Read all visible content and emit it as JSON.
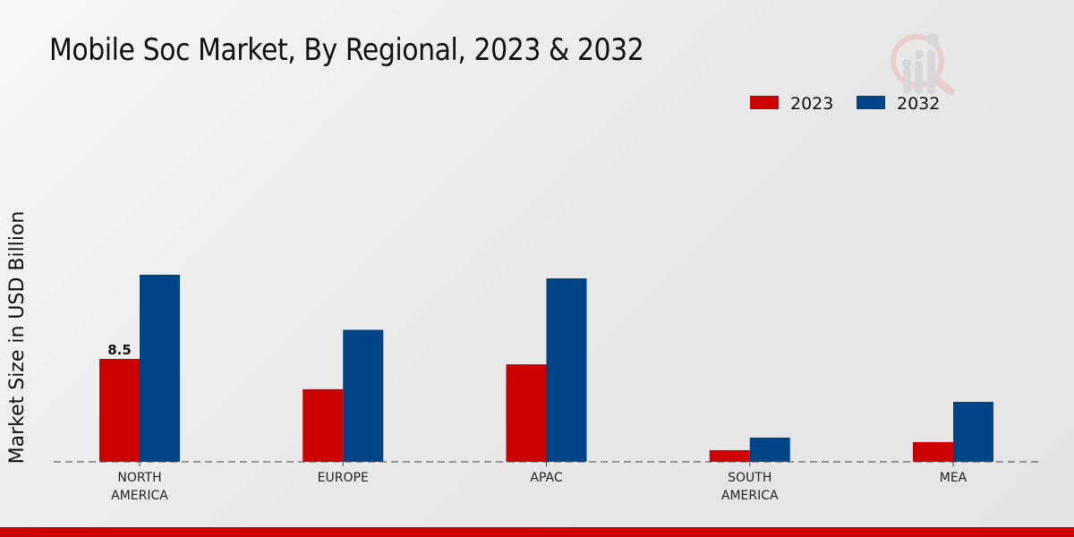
{
  "chart_data": {
    "type": "bar",
    "title": "Mobile Soc Market, By Regional, 2023 & 2032",
    "xlabel": "",
    "ylabel": "Market Size in USD Billion",
    "categories": [
      [
        "NORTH",
        "AMERICA"
      ],
      [
        "EUROPE"
      ],
      [
        "APAC"
      ],
      [
        "SOUTH",
        "AMERICA"
      ],
      [
        "MEA"
      ]
    ],
    "series": [
      {
        "name": "2023",
        "color": "#cc0000",
        "values": [
          8.5,
          6.0,
          8.05,
          0.96,
          1.63
        ],
        "data_labels": [
          "8.5",
          null,
          null,
          null,
          null
        ]
      },
      {
        "name": "2032",
        "color": "#004488",
        "values": [
          15.45,
          10.9,
          15.15,
          2.0,
          4.95
        ]
      }
    ],
    "ylim": [
      0,
      19
    ],
    "grid": false,
    "legend_position": "top-right"
  }
}
